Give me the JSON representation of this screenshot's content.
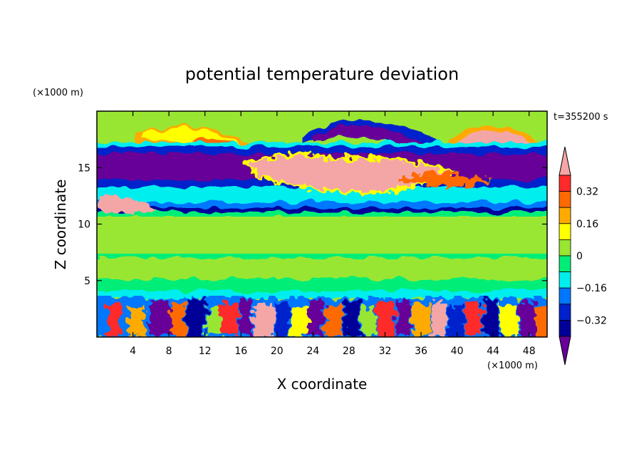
{
  "chart_data": {
    "type": "heatmap",
    "title": "potential temperature deviation",
    "time_label": "t=355200 s",
    "xlabel": "X coordinate",
    "ylabel": "Z coordinate",
    "x_unit": "(×1000 m)",
    "y_unit": "(×1000 m)",
    "xlim": [
      0,
      50
    ],
    "ylim": [
      0,
      20
    ],
    "x_ticks": [
      4,
      8,
      12,
      16,
      20,
      24,
      28,
      32,
      36,
      40,
      44,
      48
    ],
    "y_ticks": [
      5,
      10,
      15
    ],
    "colorbar": {
      "tick_labels": [
        {
          "value": 0.32,
          "label": "0.32"
        },
        {
          "value": 0.16,
          "label": "0.16"
        },
        {
          "value": 0,
          "label": "0"
        },
        {
          "value": -0.16,
          "label": "−0.16"
        },
        {
          "value": -0.32,
          "label": "−0.32"
        }
      ],
      "levels": [
        {
          "range": "> 0.40",
          "color": "#f4a6a6"
        },
        {
          "range": "0.32 – 0.40",
          "color": "#ff2a2a"
        },
        {
          "range": "0.24 – 0.32",
          "color": "#ff6a00"
        },
        {
          "range": "0.16 – 0.24",
          "color": "#ffaa00"
        },
        {
          "range": "0.08 – 0.16",
          "color": "#ffff00"
        },
        {
          "range": "0 – 0.08",
          "color": "#99e633"
        },
        {
          "range": "-0.08 – 0",
          "color": "#00ee77"
        },
        {
          "range": "-0.16 – -0.08",
          "color": "#00eeee"
        },
        {
          "range": "-0.24 – -0.16",
          "color": "#0077ff"
        },
        {
          "range": "-0.32 – -0.24",
          "color": "#0022cc"
        },
        {
          "range": "-0.40 – -0.32",
          "color": "#000099"
        },
        {
          "range": "< -0.40",
          "color": "#660099"
        }
      ]
    }
  }
}
